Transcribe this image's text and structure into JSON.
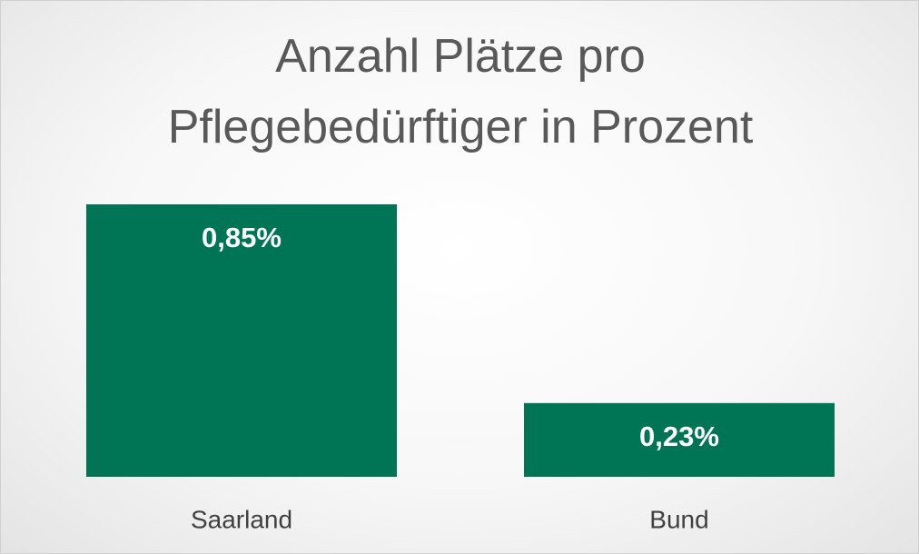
{
  "chart_data": {
    "type": "bar",
    "title": "Anzahl Plätze pro Pflegebedürftiger in Prozent",
    "categories": [
      "Saarland",
      "Bund"
    ],
    "values": [
      0.85,
      0.23
    ],
    "value_labels": [
      "0,85%",
      "0,23%"
    ],
    "color": "#007555",
    "grid": false
  }
}
